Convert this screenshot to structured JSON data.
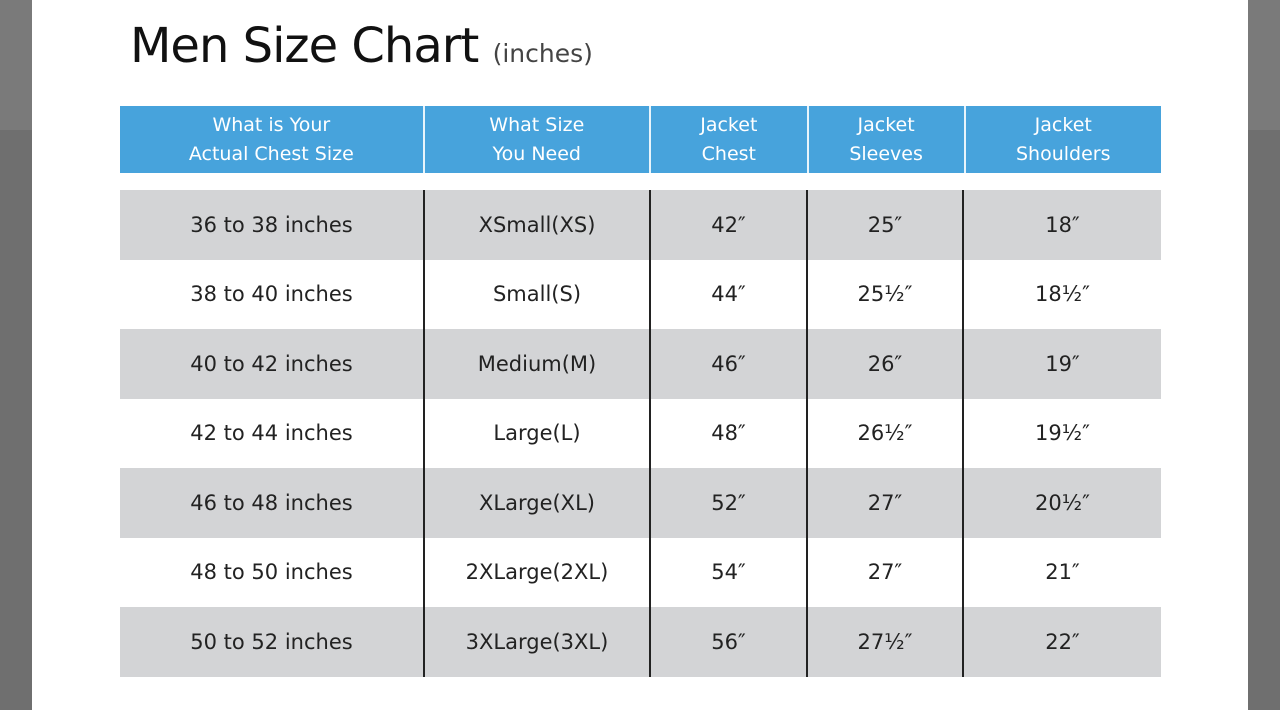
{
  "title": "Men Size Chart",
  "title_unit": "(inches)",
  "headers": [
    "What is Your\nActual Chest Size",
    "What Size\nYou Need",
    "Jacket\nChest",
    "Jacket\nSleeves",
    "Jacket\nShoulders"
  ],
  "rows": [
    [
      "36 to 38 inches",
      "XSmall(XS)",
      "42″",
      "25″",
      "18″"
    ],
    [
      "38 to 40 inches",
      "Small(S)",
      "44″",
      "25½″",
      "18½″"
    ],
    [
      "40 to 42 inches",
      "Medium(M)",
      "46″",
      "26″",
      "19″"
    ],
    [
      "42 to 44 inches",
      "Large(L)",
      "48″",
      "26½″",
      "19½″"
    ],
    [
      "46 to 48 inches",
      "XLarge(XL)",
      "52″",
      "27″",
      "20½″"
    ],
    [
      "48 to 50 inches",
      "2XLarge(2XL)",
      "54″",
      "27″",
      "21″"
    ],
    [
      "50 to 52 inches",
      "3XLarge(3XL)",
      "56″",
      "27½″",
      "22″"
    ]
  ],
  "colors": {
    "header_bg": "#47a3dc",
    "stripe": "#d3d4d6"
  }
}
